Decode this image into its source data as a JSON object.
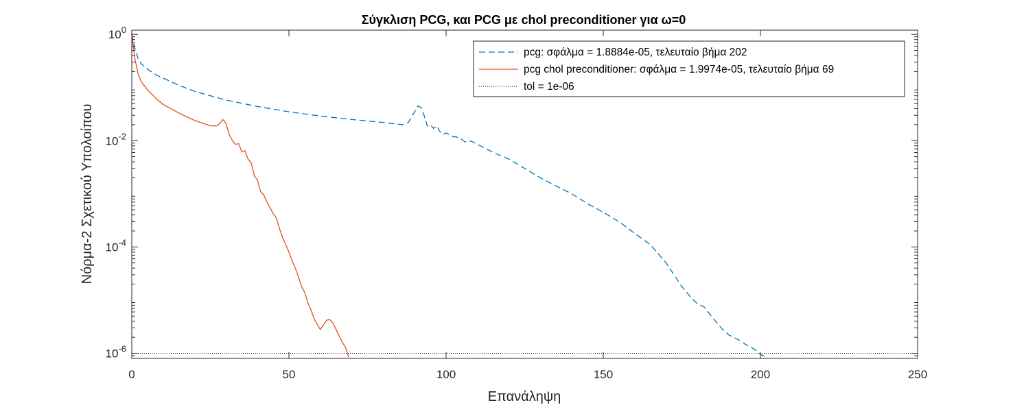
{
  "chart_data": {
    "type": "line",
    "title": "Σύγκλιση PCG, και PCG με chol preconditioner για ω=0",
    "xlabel": "Επανάληψη",
    "ylabel": "Νόρμα-2 Σχετικού Υπολοίπου",
    "xlim": [
      0,
      250
    ],
    "ylim": [
      8e-07,
      1.2
    ],
    "yscale": "log",
    "grid": false,
    "legend_position": "top-right",
    "xticks": [
      0,
      50,
      100,
      150,
      200,
      250
    ],
    "xtick_labels": [
      "0",
      "50",
      "100",
      "150",
      "200",
      "250"
    ],
    "yticks": [
      {
        "value": 1e-06,
        "base": "10",
        "exp": "-6"
      },
      {
        "value": 0.0001,
        "base": "10",
        "exp": "-4"
      },
      {
        "value": 0.01,
        "base": "10",
        "exp": "-2"
      },
      {
        "value": 1,
        "base": "10",
        "exp": "0"
      }
    ],
    "series": [
      {
        "name": "pcg: σφάλμα = 1.8884e-05, τελευταίο βήμα 202",
        "style": "dashed",
        "color": "#0072BD",
        "x": [
          0,
          1,
          2,
          3,
          5,
          8,
          10,
          15,
          20,
          25,
          30,
          40,
          50,
          60,
          70,
          80,
          86,
          88,
          90,
          91,
          92,
          93,
          94,
          95,
          96,
          97,
          98,
          99,
          100,
          102,
          104,
          106,
          108,
          110,
          115,
          120,
          125,
          130,
          135,
          140,
          145,
          150,
          155,
          160,
          165,
          170,
          175,
          178,
          180,
          182,
          185,
          188,
          190,
          193,
          195,
          198,
          200,
          202
        ],
        "y": [
          1.0,
          0.55,
          0.35,
          0.28,
          0.22,
          0.17,
          0.15,
          0.11,
          0.085,
          0.07,
          0.058,
          0.044,
          0.035,
          0.029,
          0.025,
          0.022,
          0.02,
          0.022,
          0.035,
          0.045,
          0.042,
          0.03,
          0.019,
          0.02,
          0.017,
          0.019,
          0.015,
          0.013,
          0.014,
          0.012,
          0.0115,
          0.0095,
          0.0098,
          0.0085,
          0.006,
          0.0045,
          0.003,
          0.002,
          0.0014,
          0.001,
          0.00065,
          0.00045,
          0.0003,
          0.00018,
          0.00011,
          5e-05,
          1.8e-05,
          1.1e-05,
          8.5e-06,
          7.5e-06,
          4.5e-06,
          2.8e-06,
          2.2e-06,
          1.8e-06,
          1.5e-06,
          1.2e-06,
          9.5e-07,
          8.5e-07
        ]
      },
      {
        "name": "pcg chol preconditioner: σφάλμα = 1.9974e-05, τελευταίο βήμα 69",
        "style": "solid",
        "color": "#D95319",
        "x": [
          0,
          1,
          2,
          3,
          5,
          8,
          10,
          15,
          20,
          25,
          27,
          28,
          29,
          30,
          31,
          32,
          33,
          34,
          35,
          36,
          37,
          38,
          39,
          40,
          41,
          42,
          43,
          44,
          45,
          46,
          47,
          48,
          49,
          50,
          51,
          52,
          53,
          54,
          55,
          56,
          57,
          58,
          59,
          60,
          61,
          62,
          63,
          64,
          65,
          66,
          67,
          68,
          69
        ],
        "y": [
          1.0,
          0.35,
          0.18,
          0.13,
          0.09,
          0.06,
          0.048,
          0.033,
          0.024,
          0.019,
          0.019,
          0.021,
          0.025,
          0.021,
          0.013,
          0.01,
          0.0085,
          0.0088,
          0.0062,
          0.0065,
          0.0045,
          0.0038,
          0.0022,
          0.0018,
          0.0011,
          0.00095,
          0.0007,
          0.00055,
          0.00042,
          0.00035,
          0.00022,
          0.00015,
          0.00011,
          8e-05,
          5.5e-05,
          4e-05,
          2.8e-05,
          1.8e-05,
          1.4e-05,
          9e-06,
          6.5e-06,
          4.5e-06,
          3.5e-06,
          2.8e-06,
          3.4e-06,
          4.2e-06,
          4.3e-06,
          3.7e-06,
          2.8e-06,
          2.1e-06,
          1.6e-06,
          1.3e-06,
          8.5e-07
        ]
      },
      {
        "name": "tol = 1e-06",
        "style": "dotted",
        "color": "#000000",
        "x": [
          0,
          250
        ],
        "y": [
          1e-06,
          1e-06
        ]
      }
    ]
  }
}
